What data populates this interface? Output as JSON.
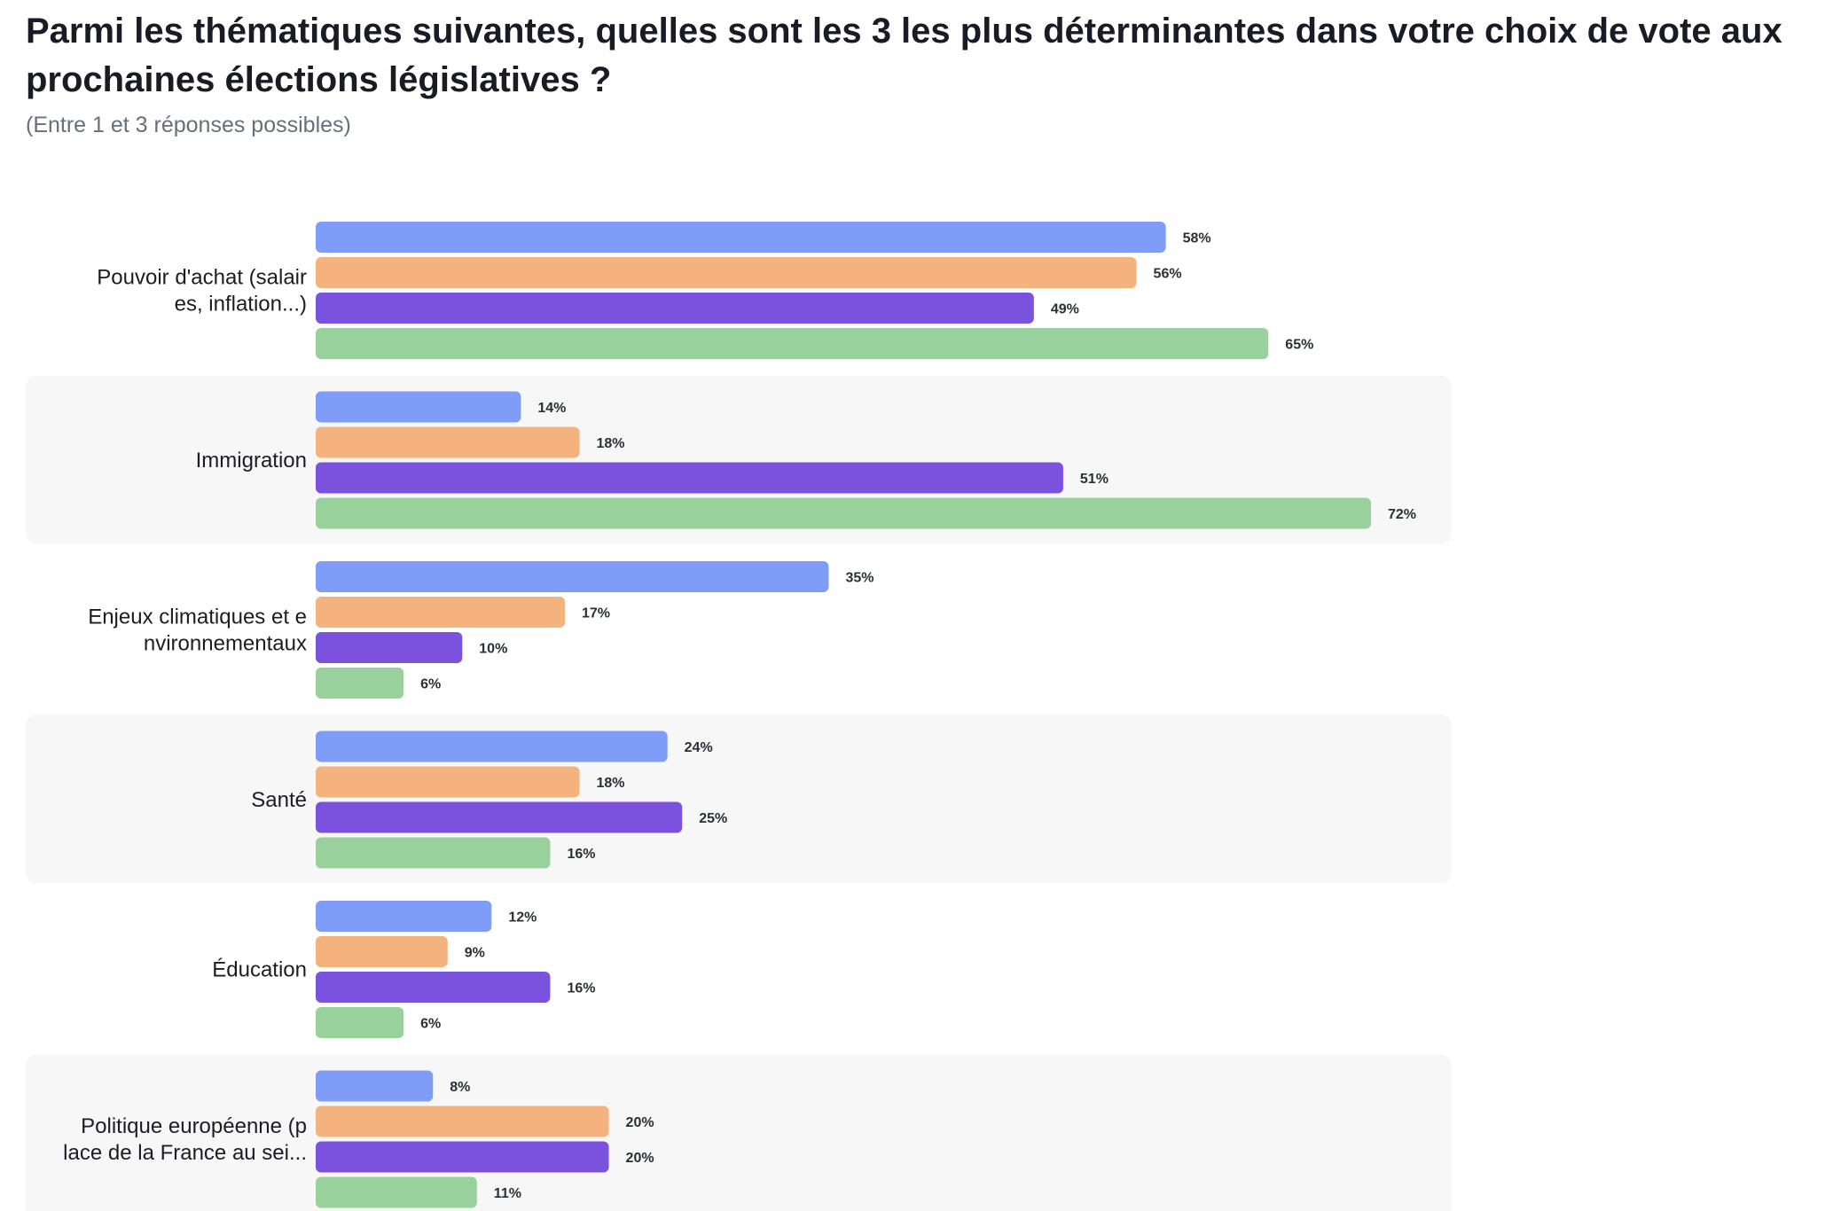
{
  "title": "Parmi les thématiques suivantes, quelles sont les 3 les plus déterminantes dans votre choix de vote aux prochaines élections législatives ?",
  "subtitle": "(Entre 1 et 3 réponses possibles)",
  "colors": [
    "#7f9cf7",
    "#f4b27f",
    "#7b52de",
    "#98d19c"
  ],
  "chart_data": {
    "type": "bar",
    "orientation": "horizontal",
    "title": "Parmi les thématiques suivantes, quelles sont les 3 les plus déterminantes dans votre choix de vote aux prochaines élections législatives ?",
    "subtitle": "(Entre 1 et 3 réponses possibles)",
    "categories": [
      [
        "Pouvoir d'achat (salair",
        "es, inflation...)"
      ],
      [
        "Immigration"
      ],
      [
        "Enjeux climatiques et e",
        "nvironnementaux"
      ],
      [
        "Santé"
      ],
      [
        "Éducation"
      ],
      [
        "Politique européenne (p",
        "lace de la France au sei..."
      ]
    ],
    "series": [
      {
        "values": [
          58,
          14,
          35,
          24,
          12,
          8
        ]
      },
      {
        "values": [
          56,
          18,
          17,
          18,
          9,
          20
        ]
      },
      {
        "values": [
          49,
          51,
          10,
          25,
          16,
          20
        ]
      },
      {
        "values": [
          65,
          72,
          6,
          16,
          6,
          11
        ]
      }
    ],
    "value_suffix": "%",
    "xlim": [
      0,
      100
    ],
    "grid": false,
    "legend": "none"
  }
}
